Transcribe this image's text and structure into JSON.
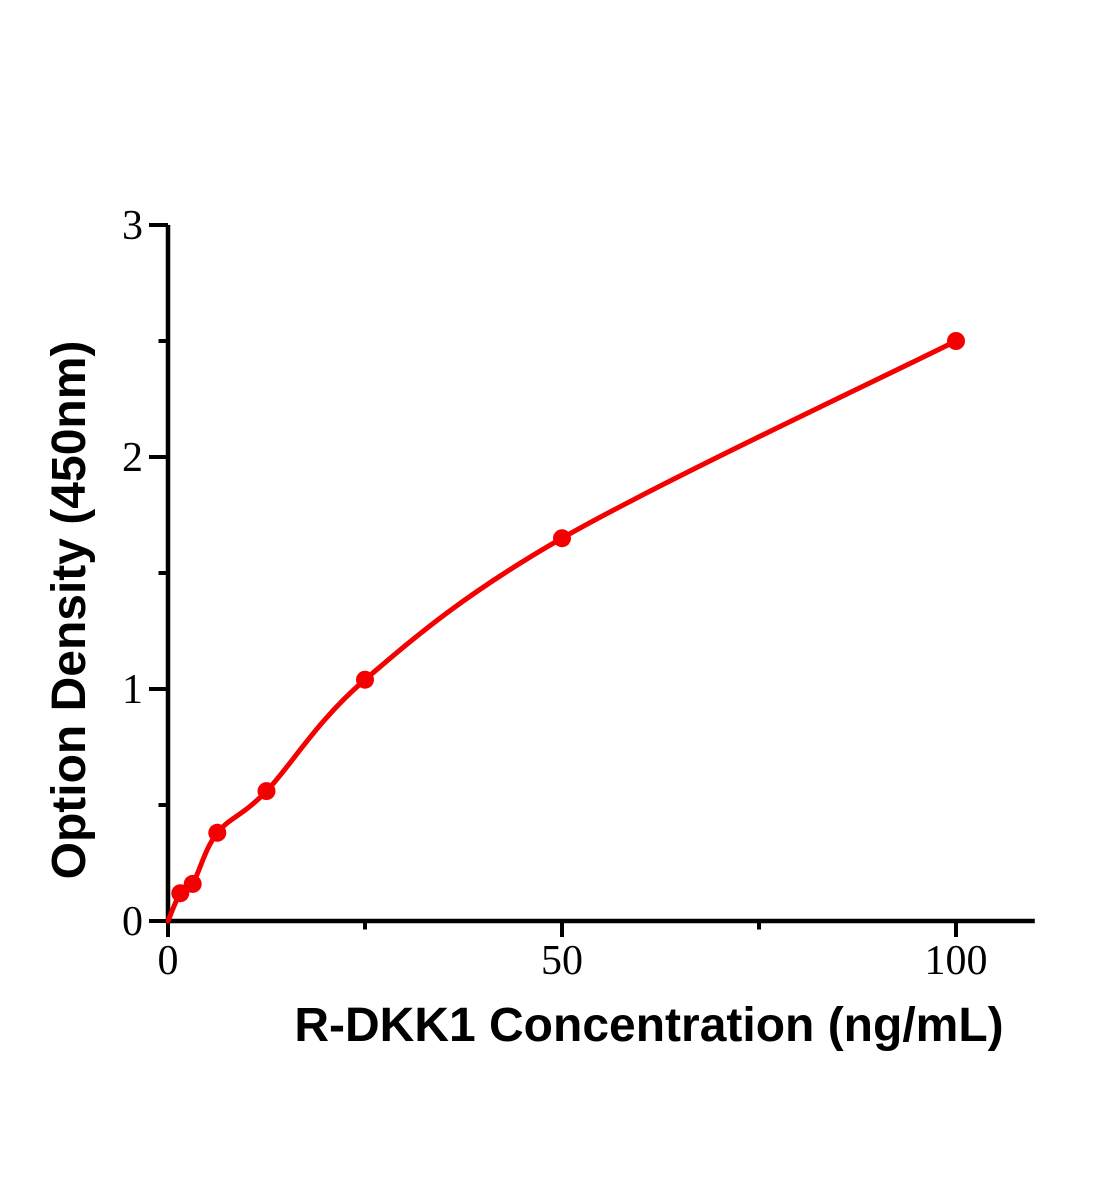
{
  "figure": {
    "background_color": "#ffffff",
    "axis_color": "#000000",
    "accent_color": "#f50000"
  },
  "chart_data": {
    "type": "scatter",
    "title": "",
    "xlabel": "R-DKK1 Concentration (ng/mL)",
    "ylabel": "Option Density (450nm)",
    "x": [
      1.56,
      3.13,
      6.25,
      12.5,
      25,
      50,
      100
    ],
    "y": [
      0.12,
      0.16,
      0.38,
      0.56,
      1.04,
      1.65,
      2.5
    ],
    "curve_starts_at_origin": true,
    "xlim": [
      0,
      110
    ],
    "ylim": [
      0,
      3
    ],
    "x_major_ticks": [
      0,
      50,
      100
    ],
    "x_minor_ticks": [
      25,
      75
    ],
    "y_major_ticks": [
      0,
      1,
      2,
      3
    ],
    "y_minor_ticks": [
      0.5,
      1.5,
      2.5
    ],
    "grid": false,
    "legend": false,
    "line_color": "#f50000",
    "marker_color": "#f50000",
    "marker_shape": "circle"
  }
}
